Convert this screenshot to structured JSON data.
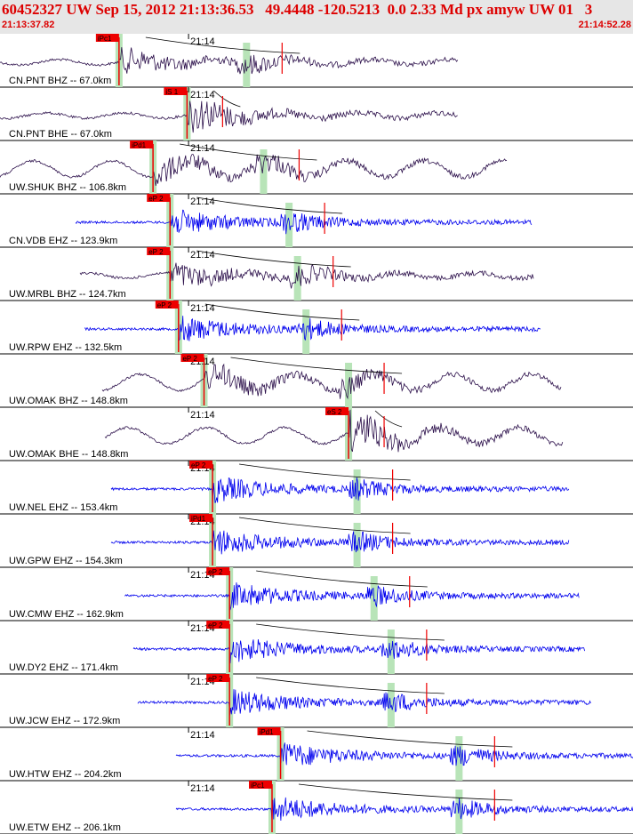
{
  "header": {
    "title": "60452327 UW Sep 15, 2012 21:13:36.53   49.4448 -120.5213  0.0 2.33 Md px amyw UW 01   3",
    "start_time": "21:13:37.82",
    "end_time": "21:14:52.28"
  },
  "chart_data": {
    "type": "line",
    "title": "60452327 UW Sep 15, 2012 21:13:36.53   49.4448 -120.5213  0.0 2.33 Md px amyw UW 01   3",
    "x_axis": {
      "start": "21:13:37.82",
      "end": "21:14:52.28",
      "tick_label": "21:14"
    },
    "ylim": null,
    "grid": false,
    "legend": "none",
    "colors": {
      "velocity_trace": "#0000ee",
      "broadband_trace": "#2b0f4a",
      "pick": "#ee0000",
      "travel_time_window": "#b8e4b8",
      "predicted_arrival_curve": "#000000",
      "header_background": "#e6e6e6"
    },
    "series": [
      {
        "label": "CN.PNT BHZ -- 67.0km",
        "distance_km": 67.0,
        "kind": "broadband",
        "pick": "iPc1",
        "pick_type": "P",
        "p_pick_t": 14,
        "s_marker_t": 29
      },
      {
        "label": "CN.PNT BHE -- 67.0km",
        "distance_km": 67.0,
        "kind": "broadband",
        "pick": "iS 1",
        "pick_type": "S",
        "p_pick_t": 22,
        "s_marker_t": 22
      },
      {
        "label": "UW.SHUK BHZ -- 106.8km",
        "distance_km": 106.8,
        "kind": "broadband",
        "pick": "iPd1",
        "pick_type": "P",
        "p_pick_t": 18,
        "s_marker_t": 31
      },
      {
        "label": "CN.VDB EHZ -- 123.9km",
        "distance_km": 123.9,
        "kind": "short-period",
        "pick": "eP 2",
        "pick_type": "P",
        "p_pick_t": 20,
        "s_marker_t": 34
      },
      {
        "label": "UW.MRBL BHZ -- 124.7km",
        "distance_km": 124.7,
        "kind": "broadband",
        "pick": "eP 2",
        "pick_type": "P",
        "p_pick_t": 20,
        "s_marker_t": 35
      },
      {
        "label": "UW.RPW EHZ -- 132.5km",
        "distance_km": 132.5,
        "kind": "short-period",
        "pick": "eP 2",
        "pick_type": "P",
        "p_pick_t": 21,
        "s_marker_t": 36
      },
      {
        "label": "UW.OMAK BHZ -- 148.8km",
        "distance_km": 148.8,
        "kind": "broadband",
        "pick": "eP 2",
        "pick_type": "P",
        "p_pick_t": 24,
        "s_marker_t": 41
      },
      {
        "label": "UW.OMAK BHE -- 148.8km",
        "distance_km": 148.8,
        "kind": "broadband",
        "pick": "eS 2",
        "pick_type": "S",
        "p_pick_t": 41,
        "s_marker_t": 41
      },
      {
        "label": "UW.NEL EHZ -- 153.4km",
        "distance_km": 153.4,
        "kind": "short-period",
        "pick": "eP 2",
        "pick_type": "P",
        "p_pick_t": 25,
        "s_marker_t": 42
      },
      {
        "label": "UW.GPW EHZ -- 154.3km",
        "distance_km": 154.3,
        "kind": "short-period",
        "pick": "iPd1",
        "pick_type": "P",
        "p_pick_t": 25,
        "s_marker_t": 42
      },
      {
        "label": "UW.CMW EHZ -- 162.9km",
        "distance_km": 162.9,
        "kind": "short-period",
        "pick": "eP 2",
        "pick_type": "P",
        "p_pick_t": 27,
        "s_marker_t": 44
      },
      {
        "label": "UW.DY2 EHZ -- 171.4km",
        "distance_km": 171.4,
        "kind": "short-period",
        "pick": "eP 2",
        "pick_type": "P",
        "p_pick_t": 27,
        "s_marker_t": 46
      },
      {
        "label": "UW.JCW EHZ -- 172.9km",
        "distance_km": 172.9,
        "kind": "short-period",
        "pick": "eP 2",
        "pick_type": "P",
        "p_pick_t": 27,
        "s_marker_t": 46
      },
      {
        "label": "UW.HTW EHZ -- 204.2km",
        "distance_km": 204.2,
        "kind": "short-period",
        "pick": "iPd1",
        "pick_type": "P",
        "p_pick_t": 33,
        "s_marker_t": 54
      },
      {
        "label": "UW.ETW EHZ -- 206.1km",
        "distance_km": 206.1,
        "kind": "short-period",
        "pick": "iPc1",
        "pick_type": "P",
        "p_pick_t": 32,
        "s_marker_t": 54
      }
    ]
  }
}
